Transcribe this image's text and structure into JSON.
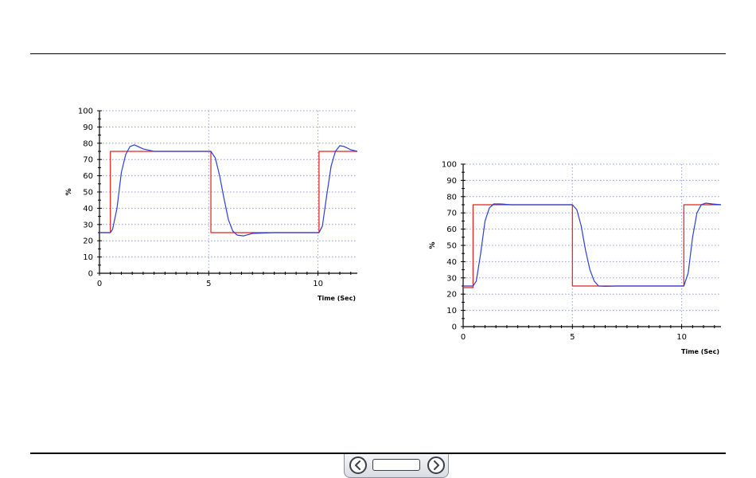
{
  "chart_data": [
    {
      "type": "line",
      "title": "",
      "xlabel": "Time (Sec)",
      "ylabel": "%",
      "xlim": [
        0,
        11.8
      ],
      "ylim": [
        0,
        100
      ],
      "x_ticks": [
        0,
        5,
        10
      ],
      "y_ticks": [
        0,
        10,
        20,
        30,
        40,
        50,
        60,
        70,
        80,
        90,
        100
      ],
      "grid": true,
      "legend": "none",
      "series": [
        {
          "color": "#e02020",
          "x": [
            0,
            0.5,
            0.5,
            5.1,
            5.1,
            10.05,
            10.05,
            11.8
          ],
          "y": [
            25,
            25,
            75,
            75,
            25,
            25,
            75,
            75
          ]
        },
        {
          "color": "#2b3fd8",
          "x": [
            0,
            0.5,
            0.6,
            0.8,
            1.0,
            1.2,
            1.4,
            1.6,
            2.0,
            2.5,
            3.5,
            5.1,
            5.3,
            5.5,
            5.7,
            5.9,
            6.1,
            6.3,
            6.6,
            7.0,
            8.0,
            9.0,
            10.05,
            10.2,
            10.4,
            10.6,
            10.8,
            11.0,
            11.2,
            11.5,
            11.8
          ],
          "y": [
            25,
            25,
            27,
            40,
            62,
            73,
            78,
            79,
            76.5,
            75,
            75,
            75,
            71,
            60,
            46,
            33,
            26,
            23.5,
            23,
            24.5,
            25,
            25,
            25,
            29,
            48,
            66,
            75,
            78.5,
            78,
            76,
            75
          ]
        }
      ]
    },
    {
      "type": "line",
      "title": "",
      "xlabel": "Time (Sec)",
      "ylabel": "%",
      "xlim": [
        0,
        11.8
      ],
      "ylim": [
        0,
        100
      ],
      "x_ticks": [
        0,
        5,
        10
      ],
      "y_ticks": [
        0,
        10,
        20,
        30,
        40,
        50,
        60,
        70,
        80,
        90,
        100
      ],
      "grid": true,
      "legend": "none",
      "series": [
        {
          "color": "#e02020",
          "x": [
            0,
            0.45,
            0.45,
            5.0,
            5.0,
            10.1,
            10.1,
            11.8
          ],
          "y": [
            24,
            24,
            75,
            75,
            25,
            25,
            75,
            75
          ]
        },
        {
          "color": "#2b3fd8",
          "x": [
            0,
            0.45,
            0.6,
            0.8,
            1.0,
            1.2,
            1.4,
            1.7,
            2.2,
            3.0,
            5.0,
            5.2,
            5.4,
            5.6,
            5.8,
            6.0,
            6.2,
            6.5,
            7.0,
            8.0,
            9.0,
            10.1,
            10.3,
            10.5,
            10.7,
            10.9,
            11.1,
            11.4,
            11.8
          ],
          "y": [
            25,
            25,
            28,
            45,
            65,
            73,
            75.5,
            75.5,
            75,
            75,
            75,
            72,
            62,
            47,
            35,
            28,
            25,
            24.8,
            25,
            25,
            25,
            25,
            33,
            55,
            70,
            75,
            76,
            75.5,
            75
          ]
        }
      ]
    }
  ],
  "navigation": {
    "prev_icon": "chevron-left-icon",
    "next_icon": "chevron-right-icon",
    "page_field": ""
  }
}
